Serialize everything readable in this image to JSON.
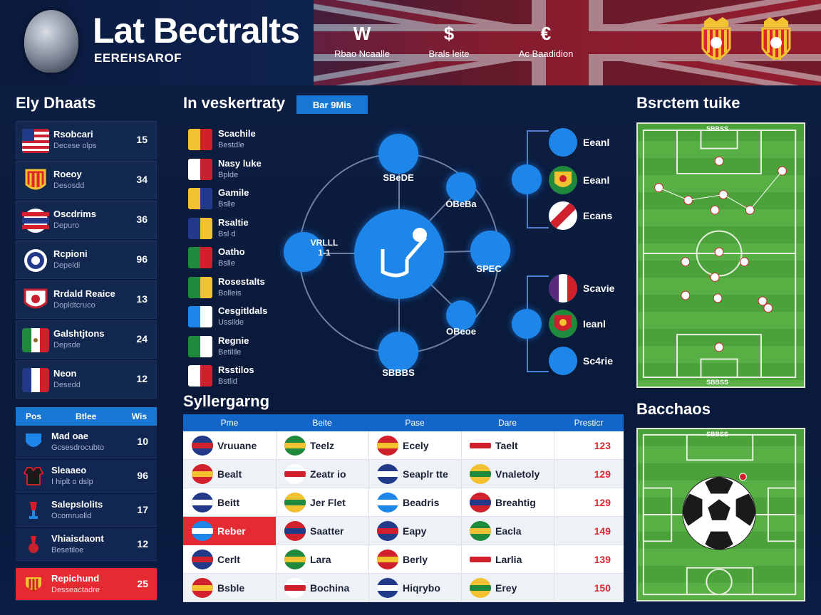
{
  "header": {
    "title": "Lat Bectralts",
    "subtitle": "EERЕHSAROF",
    "nav": [
      {
        "glyph": "W",
        "label": "Rbao Ncaalle"
      },
      {
        "glyph": "$",
        "label": "Brals leite"
      },
      {
        "glyph": "€",
        "label": "Ac Baadidion"
      }
    ]
  },
  "left": {
    "title": "Ely Dhaats",
    "teams": [
      {
        "name": "Rsobcari",
        "sub": "Decese olps",
        "num": "15",
        "flag": "usa"
      },
      {
        "name": "Roeoy",
        "sub": "Desosdd",
        "num": "34",
        "flag": "crest"
      },
      {
        "name": "Oscdrims",
        "sub": "Depuro",
        "num": "36",
        "flag": "thai"
      },
      {
        "name": "Rcpioni",
        "sub": "Depeldi",
        "num": "96",
        "flag": "round"
      },
      {
        "name": "Rrdald Reaice",
        "sub": "Dopldtcruco",
        "num": "13",
        "flag": "badge"
      },
      {
        "name": "Galshtjtons",
        "sub": "Depsde",
        "num": "24",
        "flag": "mexico"
      },
      {
        "name": "Neon",
        "sub": "Desedd",
        "num": "12",
        "flag": "france"
      }
    ],
    "rank_header": {
      "a": "Pos",
      "b": "Btlee",
      "c": "Wis"
    },
    "rankings": [
      {
        "name": "Mad oae",
        "sub": "Gcsesdrocubto",
        "num": "10",
        "hl": false
      },
      {
        "name": "Sleaaeo",
        "sub": "I hiplt o dslp",
        "num": "96",
        "hl": false
      },
      {
        "name": "Salepslolits",
        "sub": "Ocomruolld",
        "num": "17",
        "hl": false
      },
      {
        "name": "Vhiaisdaont",
        "sub": "Besetiloe",
        "num": "12",
        "hl": false
      },
      {
        "name": "Repichund",
        "sub": "Desseactadre",
        "num": "25",
        "hl": true
      }
    ]
  },
  "middle": {
    "title": "In vеskertraty",
    "badge": "Bar 9Mis",
    "mini_list": [
      {
        "name": "Scachile",
        "sub": "Bestdle"
      },
      {
        "name": "Nasy luke",
        "sub": "Bplde"
      },
      {
        "name": "Gamile",
        "sub": "Bslle"
      },
      {
        "name": "Rsaltie",
        "sub": "Bsl d"
      },
      {
        "name": "Oatho",
        "sub": "Bslle"
      },
      {
        "name": "Rosestalts",
        "sub": "Bolleis"
      },
      {
        "name": "Cesgitldals",
        "sub": "Ussilde"
      },
      {
        "name": "Regnie",
        "sub": "Betilile"
      },
      {
        "name": "Rsstilos",
        "sub": "Bstlid"
      }
    ],
    "nodes": {
      "top": "SBeDE",
      "upper_right": "OBeBa",
      "right": "SPEC",
      "lower_right": "OBeoe",
      "bottom": "SBBBS",
      "left": "VRLLL\n1-1"
    },
    "tree_top": [
      {
        "label": "Eeanl"
      },
      {
        "label": "Eeanl"
      },
      {
        "label": "Ecans"
      }
    ],
    "tree_bottom": [
      {
        "label": "Scavie"
      },
      {
        "label": "Ieanl"
      },
      {
        "label": "Sc4rie"
      }
    ]
  },
  "results": {
    "title": "Syllergarng",
    "columns": [
      "Pme",
      "Beite",
      "Pase",
      "Dare",
      "Presticr"
    ],
    "rows": [
      {
        "c1": "Vruuane",
        "c2": "Teelz",
        "c3": "Ecely",
        "c4": "Taelt",
        "score": "123"
      },
      {
        "c1": "Bealt",
        "c2": "Zeatr io",
        "c3": "Seaplr tte",
        "c4": "Vnaletoly",
        "score": "129"
      },
      {
        "c1": "Beitt",
        "c2": "Jer Flet",
        "c3": "Beadris",
        "c4": "Breahtig",
        "score": "129"
      },
      {
        "c1": "Reber",
        "c2": "Saatter",
        "c3": "Eapy",
        "c4": "Eacla",
        "score": "149",
        "hl": true
      },
      {
        "c1": "Cerlt",
        "c2": "Lara",
        "c3": "Berly",
        "c4": "Larlia",
        "score": "139"
      },
      {
        "c1": "Bsble",
        "c2": "Bochina",
        "c3": "Hiqrybo",
        "c4": "Erey",
        "score": "150"
      }
    ]
  },
  "right": {
    "title_top": "Bsrctem tuike",
    "title_bottom": "Bacchaos",
    "pitch_label_top": "SBBSS",
    "pitch_label_bottom": "SBBSS",
    "pitch2_label": "SBBSS"
  },
  "colors": {
    "accent": "#1877d2",
    "highlight": "#e52a32",
    "score_red": "#e0252c",
    "pitch": "#4ca23a"
  }
}
